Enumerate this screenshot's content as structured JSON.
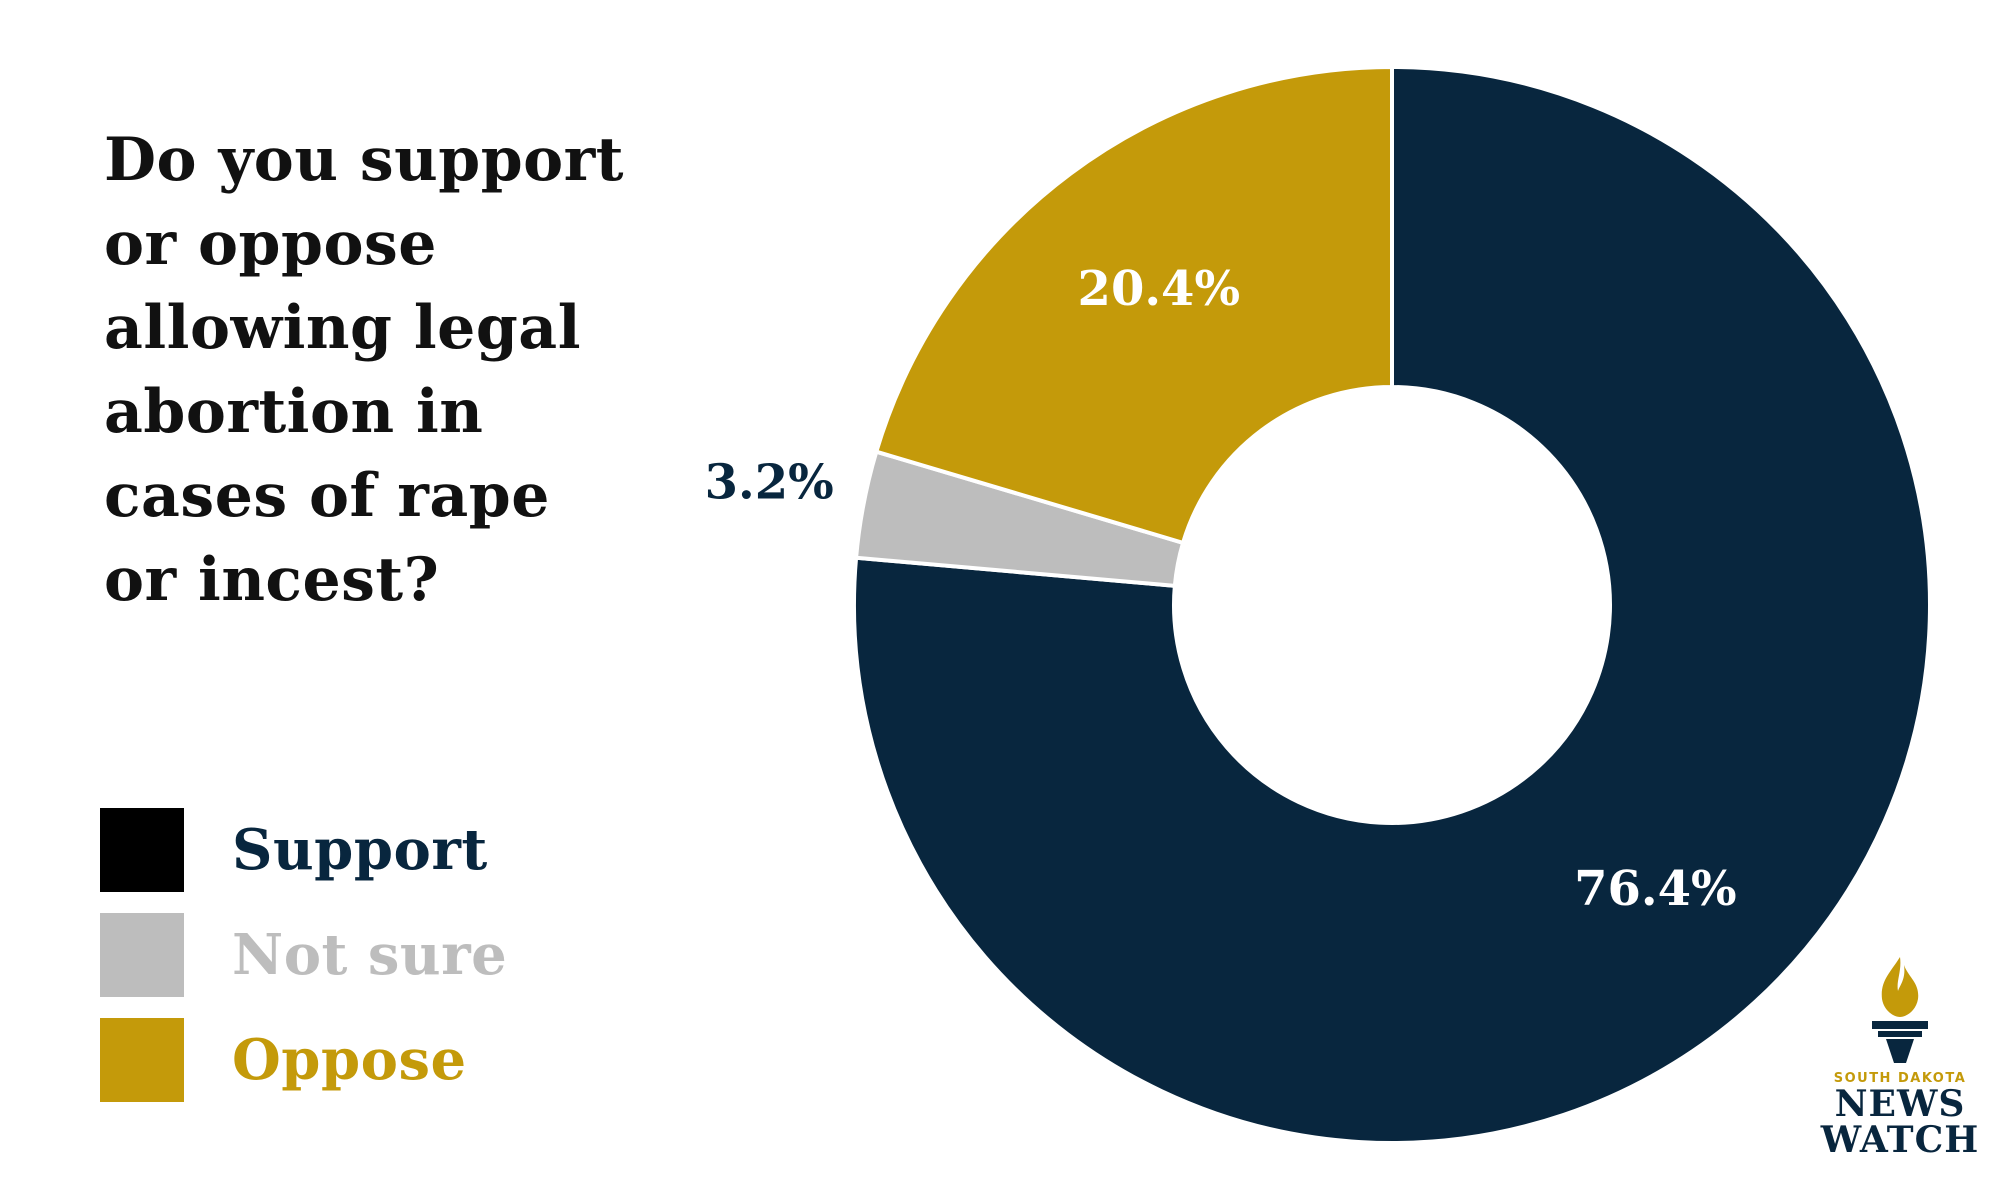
{
  "chart_data": {
    "type": "pie",
    "variant": "donut",
    "title": "Do you support or oppose allowing legal abortion in cases of rape or incest?",
    "title_lines": [
      "Do you support",
      "or oppose",
      "allowing legal",
      "abortion in",
      "cases of rape",
      "or incest?"
    ],
    "series": [
      {
        "name": "Support",
        "value": 76.4,
        "label": "76.4%",
        "color": "#08263e",
        "label_color": "#ffffff"
      },
      {
        "name": "Not sure",
        "value": 3.2,
        "label": "3.2%",
        "color": "#bdbdbd",
        "label_color": "#08263e"
      },
      {
        "name": "Oppose",
        "value": 20.4,
        "label": "20.4%",
        "color": "#c49a0a",
        "label_color": "#ffffff"
      }
    ],
    "legend": [
      {
        "name": "Support",
        "swatch": "#000000",
        "text_color": "#08263e"
      },
      {
        "name": "Not sure",
        "swatch": "#bdbdbd",
        "text_color": "#bdbdbd"
      },
      {
        "name": "Oppose",
        "swatch": "#c49a0a",
        "text_color": "#c49a0a"
      }
    ],
    "legend_position": "bottom-left"
  },
  "logo": {
    "kicker": "SOUTH DAKOTA",
    "line1": "NEWS",
    "line2": "WATCH",
    "flame_color": "#c49a0a",
    "torch_color": "#08263e"
  }
}
